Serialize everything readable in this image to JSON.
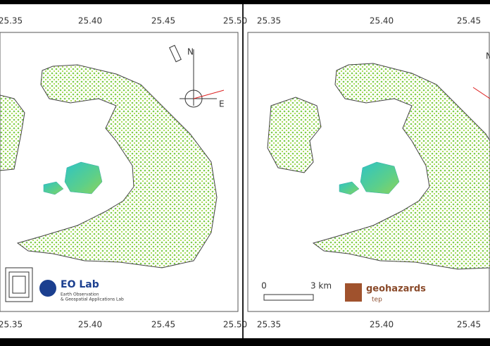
{
  "left_panel": {
    "top_ticks": [
      "25.35",
      "25.40",
      "25.45",
      "25.50"
    ],
    "bottom_ticks": [
      "25.35",
      "25.40",
      "25.45",
      "25.50"
    ],
    "compass": {
      "north": "N",
      "east": "E"
    },
    "logo": {
      "title": "EO Lab",
      "subtitle_1": "Earth Observation",
      "subtitle_2": "& Geospatial Applications Lab"
    }
  },
  "right_panel": {
    "top_ticks": [
      "25.35",
      "25.40",
      "25.45"
    ],
    "bottom_ticks": [
      "25.35",
      "25.40",
      "25.45"
    ],
    "compass": {
      "north": "N"
    },
    "scale_bar": {
      "start": "0",
      "end": "3 km"
    },
    "logo": {
      "name": "geohazards",
      "tag": "tep"
    }
  }
}
